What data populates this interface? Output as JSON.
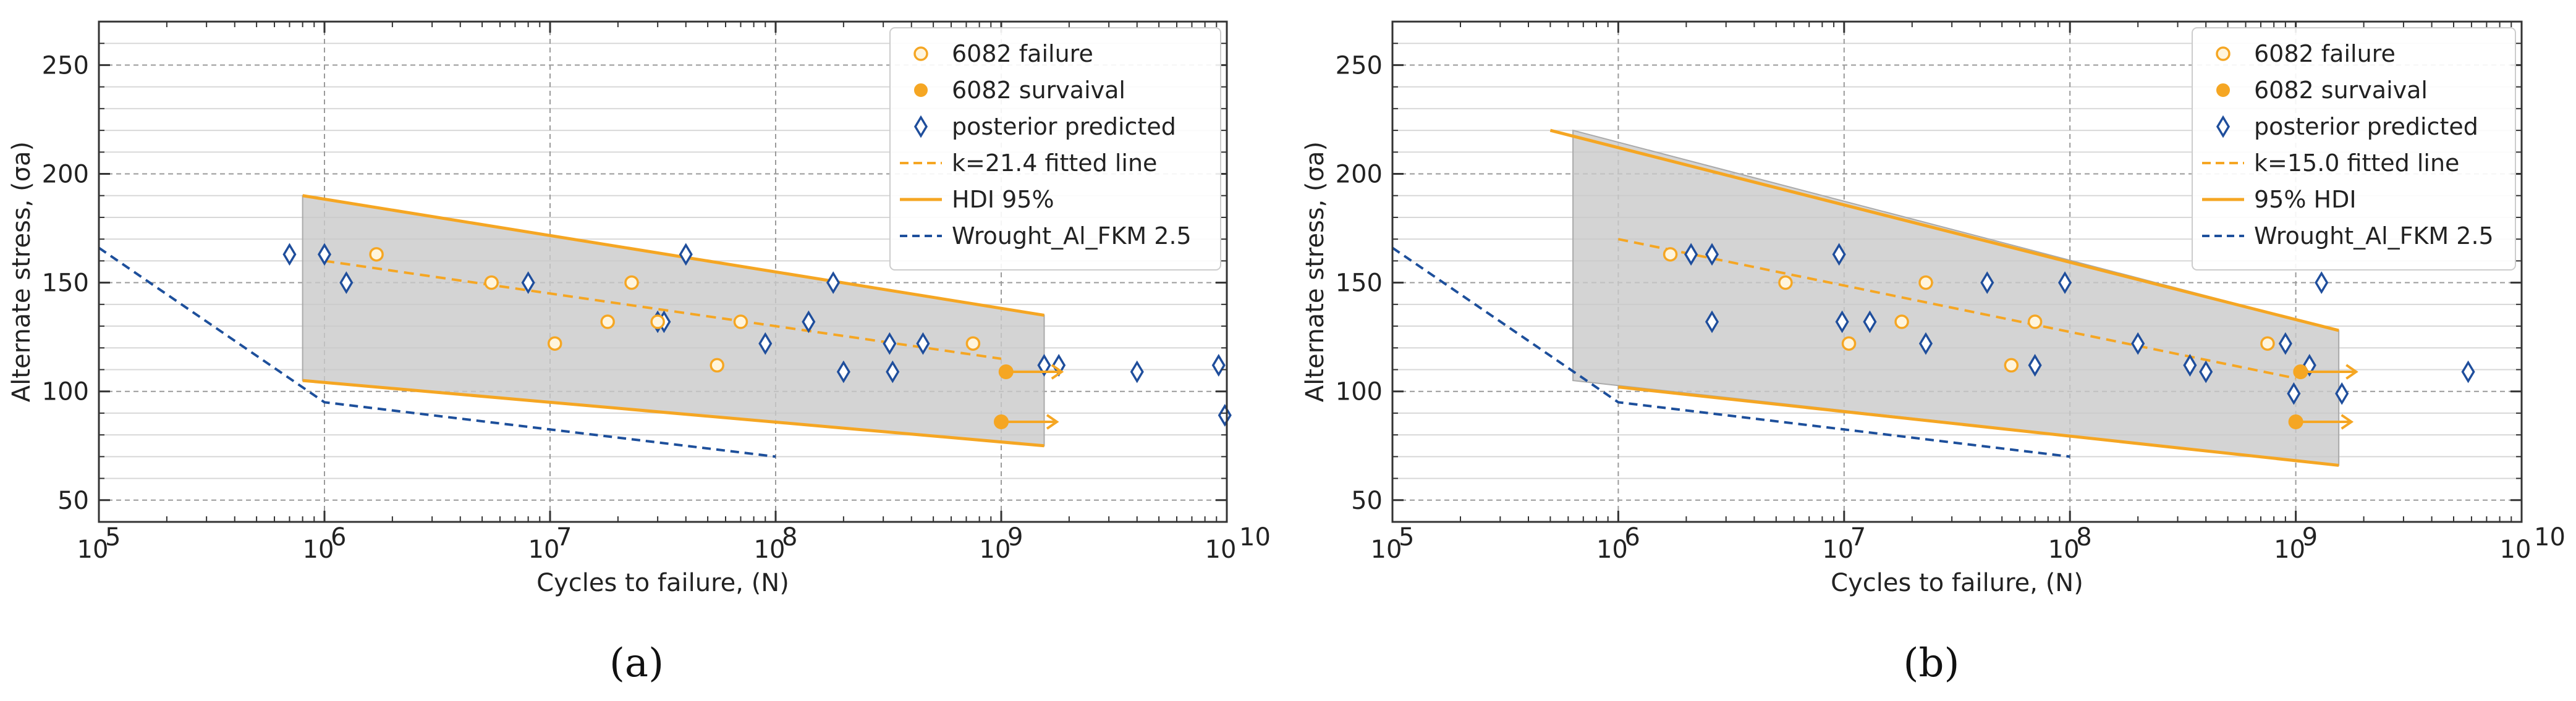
{
  "chart_data": [
    {
      "type": "scatter",
      "panel": "(a)",
      "xlabel": "Cycles to failure, (N)",
      "ylabel": "Alternate stress, (σa)",
      "xscale": "log",
      "xlim": [
        100000,
        10000000000
      ],
      "ylim": [
        40,
        270
      ],
      "x_ticks": [
        100000,
        1000000,
        10000000,
        100000000,
        1000000000,
        10000000000
      ],
      "x_tick_labels": [
        {
          "base": "10",
          "exp": "5"
        },
        {
          "base": "10",
          "exp": "6"
        },
        {
          "base": "10",
          "exp": "7"
        },
        {
          "base": "10",
          "exp": "8"
        },
        {
          "base": "10",
          "exp": "9"
        },
        {
          "base": "10",
          "exp": "10"
        }
      ],
      "y_ticks": [
        50,
        100,
        150,
        200,
        250
      ],
      "y_tick_labels": [
        "50",
        "100",
        "150",
        "200",
        "250"
      ],
      "legend_position": "top-right",
      "legend": [
        "6082 failure",
        "6082 survaival",
        "posterior predicted",
        "k=21.4 fitted line",
        "HDI 95%",
        "Wrought_Al_FKM 2.5"
      ],
      "hdi_band": {
        "x": [
          800000,
          1550000000
        ],
        "upper": [
          190,
          135
        ],
        "lower": [
          105,
          75
        ]
      },
      "fitted_line": {
        "x": [
          1000000,
          1000000000
        ],
        "y": [
          160,
          115
        ]
      },
      "fkm_line": {
        "x": [
          100000,
          1000000,
          100000000
        ],
        "y": [
          166,
          95,
          70
        ]
      },
      "failure": {
        "x": [
          1700000,
          5500000,
          10500000,
          18000000,
          23000000,
          30000000,
          55000000,
          70000000,
          750000000
        ],
        "y": [
          163,
          150,
          122,
          132,
          150,
          132,
          112,
          132,
          122
        ]
      },
      "survival": {
        "x": [
          1000000000,
          1050000000
        ],
        "y": [
          86,
          109
        ]
      },
      "posterior": {
        "x": [
          700000,
          1000000,
          1250000,
          8000000,
          30000000,
          32000000,
          40000000,
          90000000,
          140000000,
          180000000,
          200000000,
          320000000,
          330000000,
          450000000,
          1550000000,
          1800000000,
          4000000000,
          9200000000,
          9800000000
        ],
        "y": [
          163,
          163,
          150,
          150,
          132,
          132,
          163,
          122,
          132,
          150,
          109,
          122,
          109,
          122,
          112,
          112,
          109,
          112,
          89
        ]
      }
    },
    {
      "type": "scatter",
      "panel": "(b)",
      "xlabel": "Cycles to failure, (N)",
      "ylabel": "Alternate stress, (σa)",
      "xscale": "log",
      "xlim": [
        100000,
        10000000000
      ],
      "ylim": [
        40,
        270
      ],
      "x_ticks": [
        100000,
        1000000,
        10000000,
        100000000,
        1000000000,
        10000000000
      ],
      "x_tick_labels": [
        {
          "base": "10",
          "exp": "5"
        },
        {
          "base": "10",
          "exp": "6"
        },
        {
          "base": "10",
          "exp": "7"
        },
        {
          "base": "10",
          "exp": "8"
        },
        {
          "base": "10",
          "exp": "9"
        },
        {
          "base": "10",
          "exp": "10"
        }
      ],
      "y_ticks": [
        50,
        100,
        150,
        200,
        250
      ],
      "y_tick_labels": [
        "50",
        "100",
        "150",
        "200",
        "250"
      ],
      "legend_position": "top-right",
      "legend": [
        "6082 failure",
        "6082 survaival",
        "posterior predicted",
        "k=15.0 fitted line",
        "95% HDI",
        "Wrought_Al_FKM 2.5"
      ],
      "hdi_band": {
        "x": [
          630000,
          1550000000
        ],
        "upper": [
          220,
          128
        ],
        "lower": [
          105,
          66
        ]
      },
      "hdi_upper_line": {
        "x": [
          500000,
          1550000000
        ],
        "y": [
          220,
          128
        ]
      },
      "hdi_lower_line": {
        "x": [
          1000000,
          1550000000
        ],
        "y": [
          102,
          66
        ]
      },
      "fitted_line": {
        "x": [
          1000000,
          1000000000
        ],
        "y": [
          170,
          106
        ]
      },
      "fkm_line": {
        "x": [
          100000,
          1000000,
          100000000
        ],
        "y": [
          166,
          95,
          70
        ]
      },
      "failure": {
        "x": [
          1700000,
          5500000,
          10500000,
          18000000,
          23000000,
          55000000,
          70000000,
          750000000
        ],
        "y": [
          163,
          150,
          122,
          132,
          150,
          112,
          132,
          122
        ]
      },
      "survival": {
        "x": [
          1000000000,
          1050000000
        ],
        "y": [
          86,
          109
        ]
      },
      "posterior": {
        "x": [
          2100000,
          2600000,
          2600000,
          9500000,
          9800000,
          13000000,
          23000000,
          43000000,
          70000000,
          95000000,
          200000000,
          340000000,
          400000000,
          900000000,
          980000000,
          1150000000,
          1300000000,
          1600000000,
          5800000000
        ],
        "y": [
          163,
          163,
          132,
          163,
          132,
          132,
          122,
          150,
          112,
          150,
          122,
          112,
          109,
          122,
          99,
          112,
          150,
          99,
          109
        ]
      }
    }
  ],
  "captions": [
    "(a)",
    "(b)"
  ]
}
